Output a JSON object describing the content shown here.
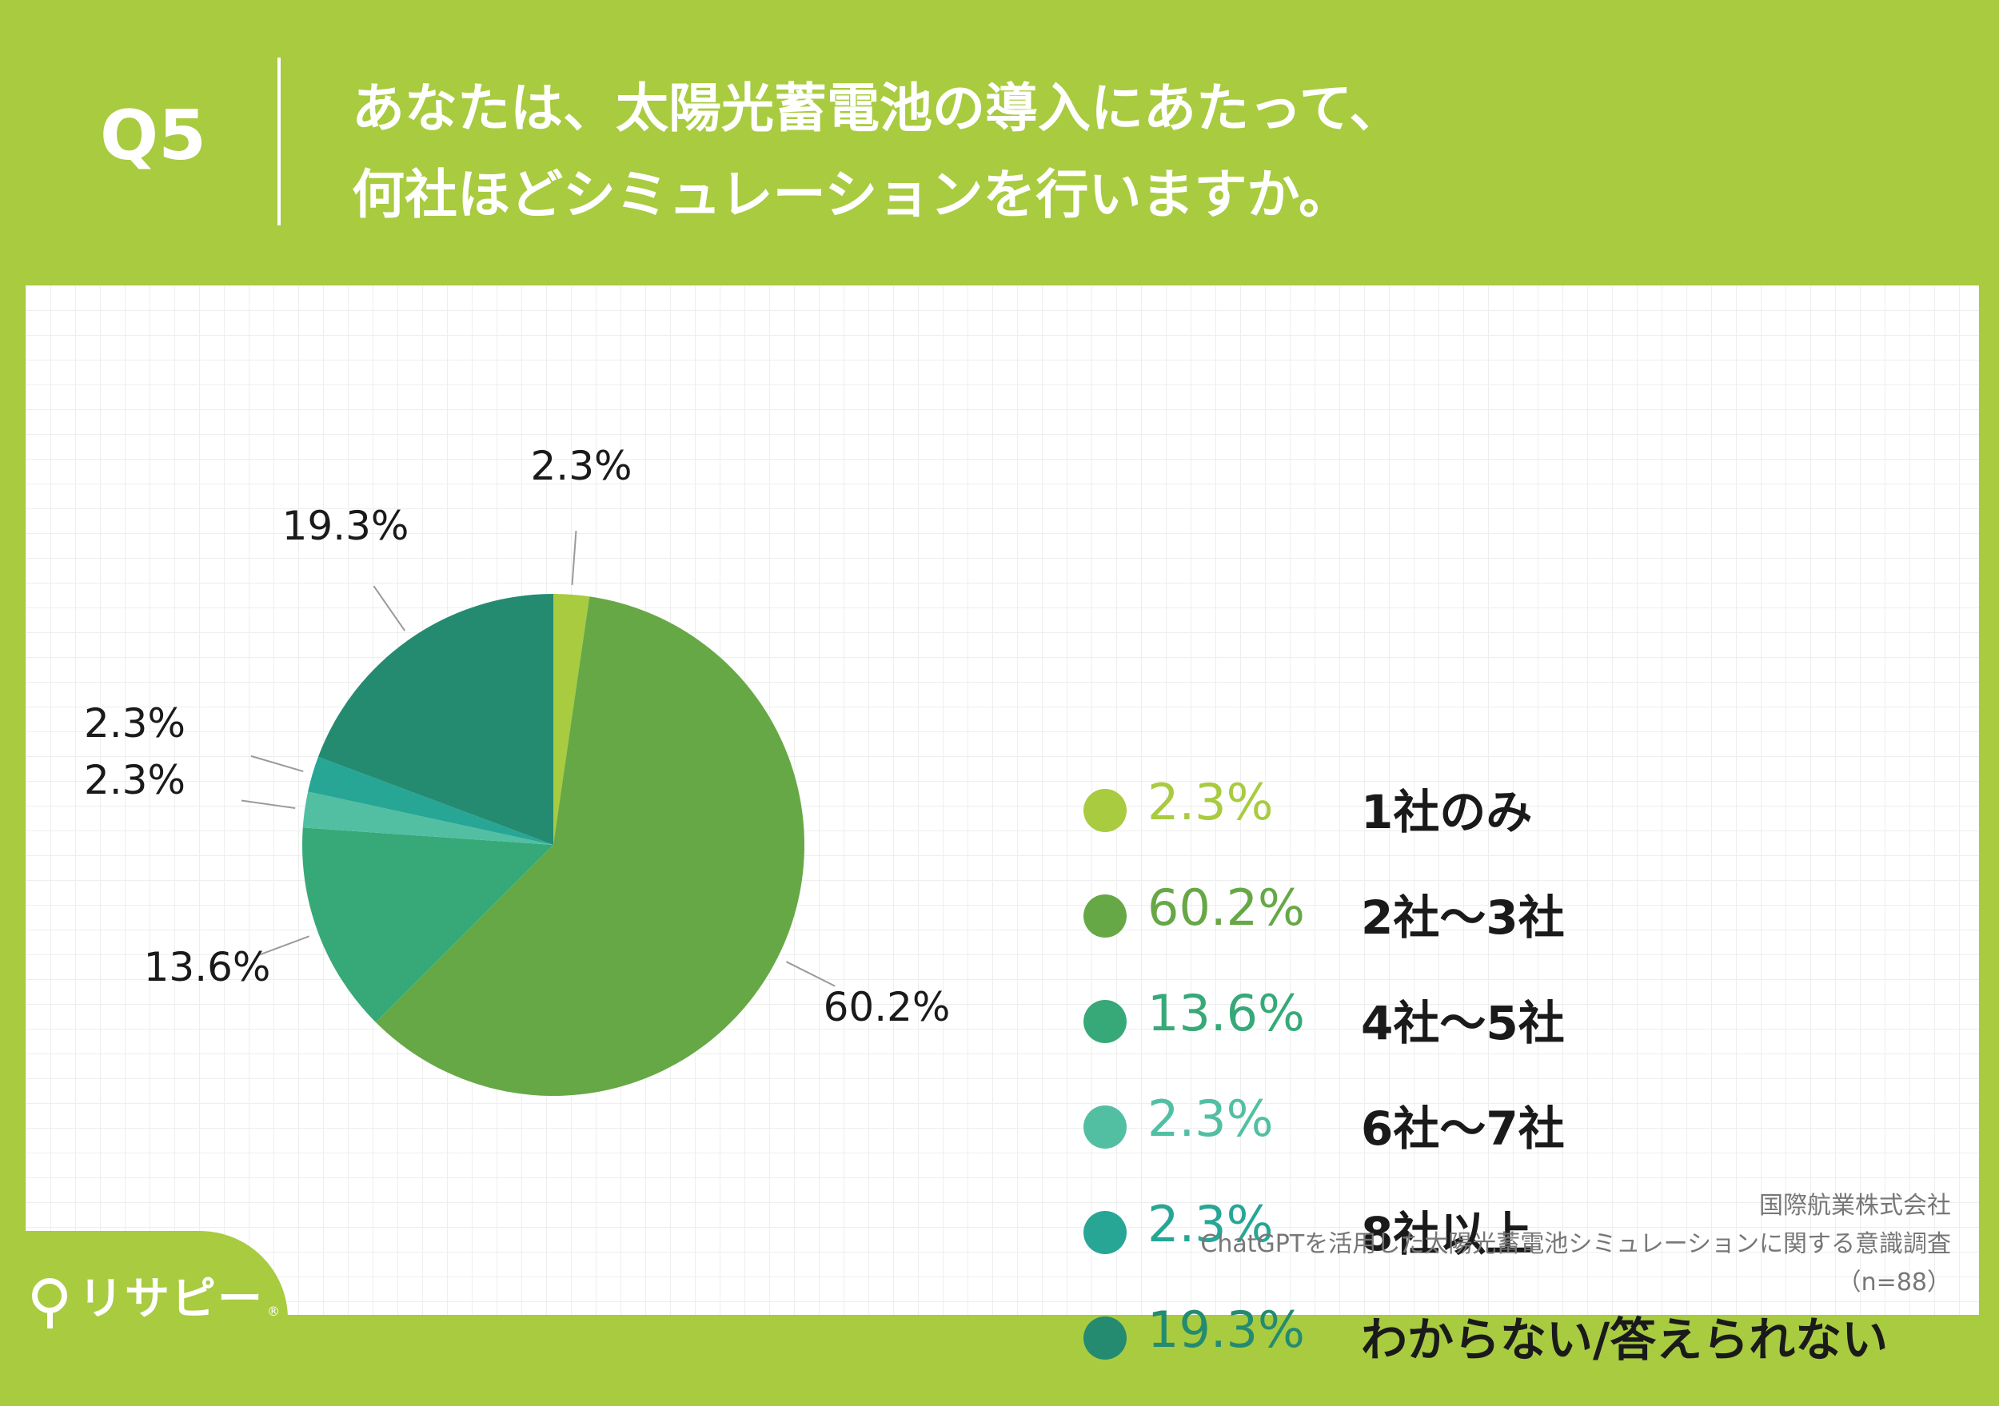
{
  "header": {
    "question_number": "Q5",
    "question_line1": "あなたは、太陽光蓄電池の導入にあたって、",
    "question_line2": "何社ほどシミュレーションを行いますか。"
  },
  "chart_data": {
    "type": "pie",
    "slices": [
      {
        "label": "1社のみ",
        "value": 2.3,
        "display": "2.3%",
        "color": "#a8cb40"
      },
      {
        "label": "2社〜3社",
        "value": 60.2,
        "display": "60.2%",
        "color": "#67a846"
      },
      {
        "label": "4社〜5社",
        "value": 13.6,
        "display": "13.6%",
        "color": "#37a979"
      },
      {
        "label": "6社〜7社",
        "value": 2.3,
        "display": "2.3%",
        "color": "#52bfa3"
      },
      {
        "label": "8社以上",
        "value": 2.3,
        "display": "2.3%",
        "color": "#27a696"
      },
      {
        "label": "わからない/答えられない",
        "value": 19.3,
        "display": "19.3%",
        "color": "#248b71"
      }
    ],
    "start_angle": "12 o'clock",
    "direction": "clockwise",
    "legend_position": "right"
  },
  "source": {
    "company": "国際航業株式会社",
    "survey": "ChatGPTを活用した太陽光蓄電池シミュレーションに関する意識調査",
    "sample": "（n=88）"
  },
  "logo": {
    "text": "リサピー",
    "mark": "®"
  }
}
